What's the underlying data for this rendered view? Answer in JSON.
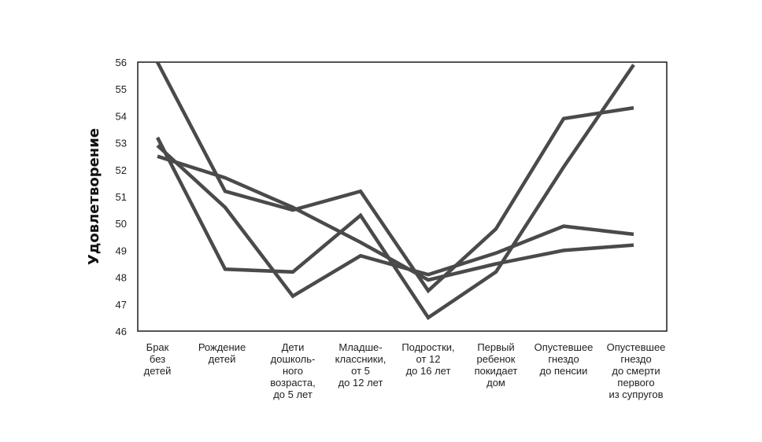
{
  "chart_data": {
    "type": "line",
    "title": "",
    "xlabel": "",
    "ylabel": "Удовлетворение",
    "ylim": [
      46,
      56
    ],
    "yticks": [
      46,
      47,
      48,
      49,
      50,
      51,
      52,
      53,
      54,
      55,
      56
    ],
    "grid": false,
    "line_color": "#4a4a4a",
    "categories": [
      [
        "Брак",
        "без",
        "детей"
      ],
      [
        "Рождение",
        "детей"
      ],
      [
        "Дети",
        "дошколь-",
        "ного",
        "возраста,",
        "до 5 лет"
      ],
      [
        "Младше-",
        "классники,",
        "от 5",
        "до 12 лет"
      ],
      [
        "Подростки,",
        "от 12",
        "до 16 лет"
      ],
      [
        "Первый",
        "ребенок",
        "покидает",
        "дом"
      ],
      [
        "Опустевшее",
        "гнездо",
        "до пенсии"
      ],
      [
        "Опустевшее",
        "гнездо",
        "до смерти",
        "первого",
        "из супругов"
      ]
    ],
    "series": [
      {
        "values": [
          56.0,
          51.2,
          50.5,
          51.2,
          47.5,
          49.8,
          53.9,
          54.3
        ]
      },
      {
        "values": [
          53.2,
          48.3,
          48.2,
          50.3,
          46.5,
          48.2,
          52.1,
          55.9
        ]
      },
      {
        "values": [
          52.9,
          50.6,
          47.3,
          48.8,
          48.1,
          48.9,
          49.9,
          49.6
        ]
      },
      {
        "values": [
          52.5,
          51.7,
          50.6,
          49.3,
          47.9,
          48.5,
          49.0,
          49.2
        ]
      }
    ]
  }
}
